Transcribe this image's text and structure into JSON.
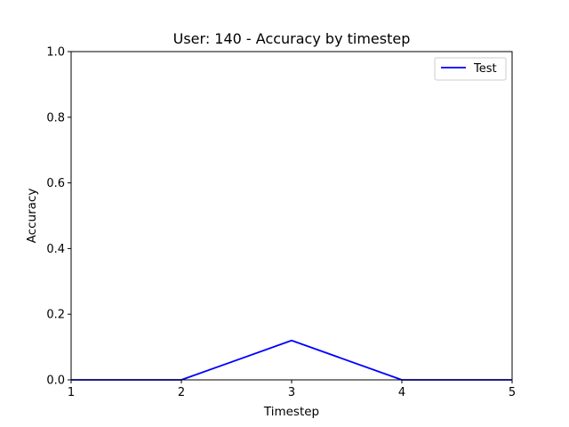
{
  "chart_data": {
    "type": "line",
    "title": "User: 140 - Accuracy by timestep",
    "xlabel": "Timestep",
    "ylabel": "Accuracy",
    "x": [
      1,
      2,
      3,
      4,
      5
    ],
    "xlim": [
      1,
      5
    ],
    "ylim": [
      0,
      1.0
    ],
    "xticks": [
      "1",
      "2",
      "3",
      "4",
      "5"
    ],
    "yticks": [
      "0.0",
      "0.2",
      "0.4",
      "0.6",
      "0.8",
      "1.0"
    ],
    "grid": false,
    "legend_position": "top-right",
    "series": [
      {
        "name": "Test",
        "color": "#0000ff",
        "values": [
          0.0,
          0.0,
          0.12,
          0.0,
          0.0
        ]
      }
    ]
  }
}
